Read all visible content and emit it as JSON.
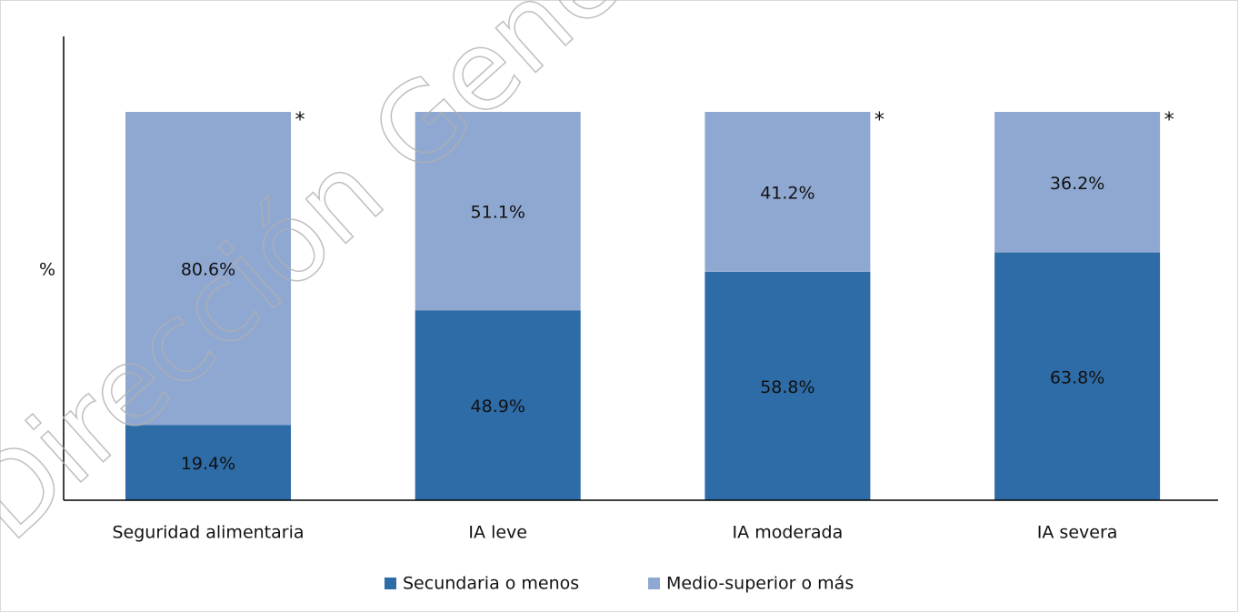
{
  "chart_data": {
    "type": "stacked_bar",
    "ylabel": "%",
    "categories": [
      "Seguridad alimentaria",
      "IA leve",
      "IA moderada",
      "IA severa"
    ],
    "series": [
      {
        "name": "Secundaria o menos",
        "color": "#2e6ca8",
        "values": [
          19.4,
          48.9,
          58.8,
          63.8
        ],
        "value_labels": [
          "19.4%",
          "48.9%",
          "58.8%",
          "63.8%"
        ]
      },
      {
        "name": "Medio-superior o más",
        "color": "#8fa8d1",
        "values": [
          80.6,
          51.1,
          41.2,
          36.2
        ],
        "value_labels": [
          "80.6%",
          "51.1%",
          "41.2%",
          "36.2%"
        ]
      }
    ],
    "ylim": [
      0,
      100
    ],
    "annotations": [
      {
        "text": "*",
        "category": "Seguridad alimentaria"
      },
      {
        "text": "*",
        "category": "IA moderada"
      },
      {
        "text": "*",
        "category": "IA severa"
      }
    ],
    "watermark": "Dirección General"
  }
}
